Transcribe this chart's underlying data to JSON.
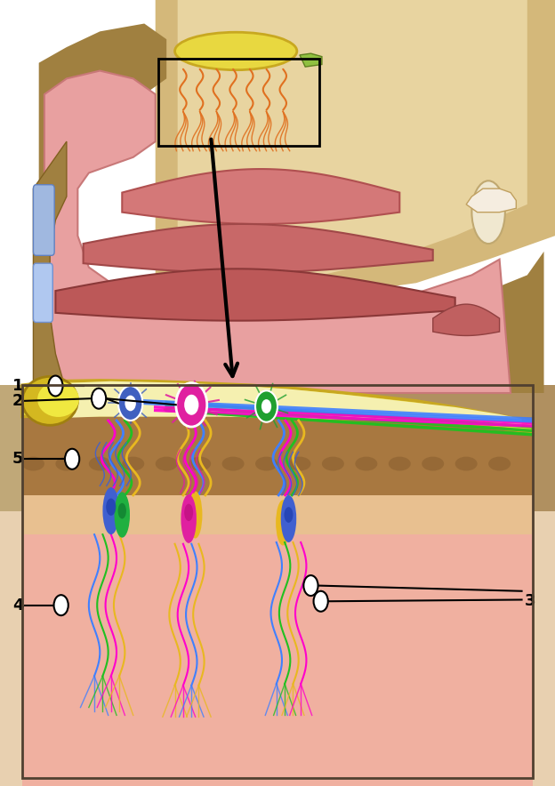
{
  "fig_width": 6.24,
  "fig_height": 8.84,
  "dpi": 100,
  "bg_color": "#ffffff",
  "colors": {
    "nasal_cavity_pink": "#e8a0a0",
    "nasal_cavity_deep": "#c87878",
    "bone_texture": "#a08040",
    "olfactory_bulb_yellow": "#e8d840",
    "olfactory_bulb_outer": "#c8a820",
    "nerve_yellow": "#e8b820",
    "nerve_orange": "#e07020",
    "brain_tan": "#d4b87a",
    "brain_light": "#e8d4a0",
    "cribriform_dark": "#7a5820",
    "magenta": "#ff00cc",
    "blue": "#4080ff",
    "green": "#20c020",
    "label_color": "#000000"
  }
}
